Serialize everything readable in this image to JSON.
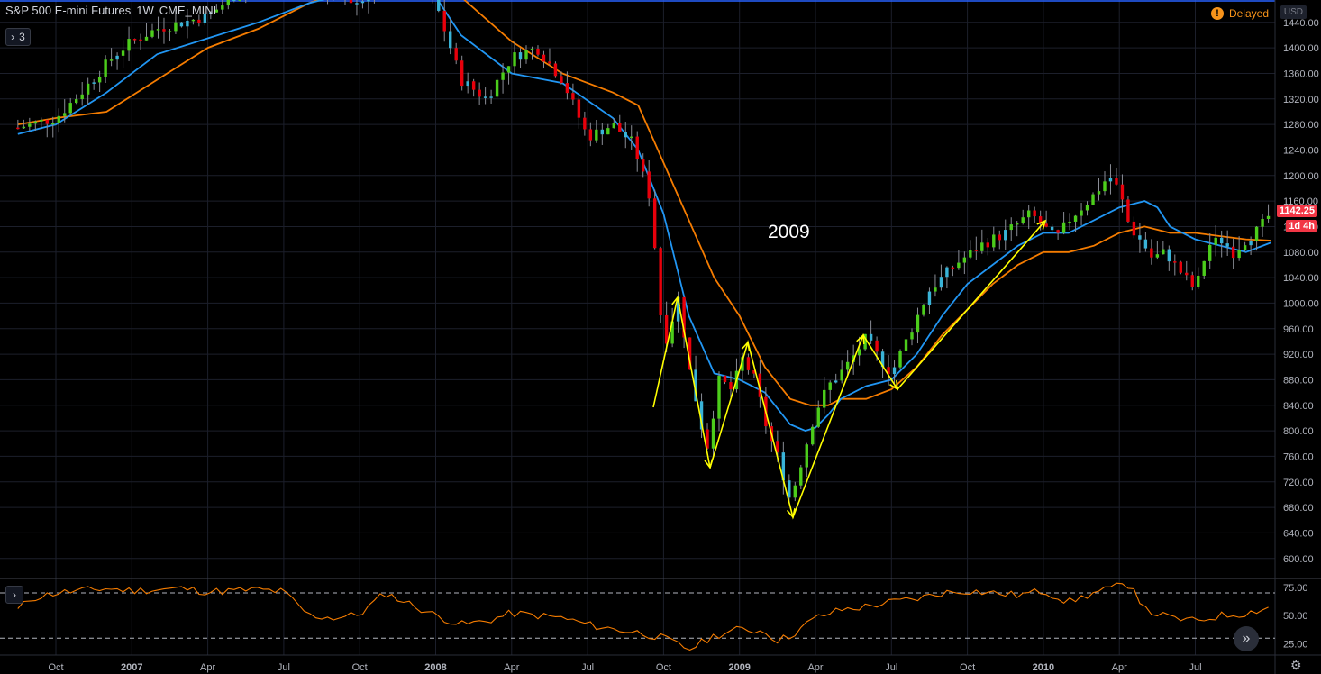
{
  "header": {
    "symbol": "S&P 500 E-mini Futures",
    "interval": "1W",
    "exchange": "CME_MINI",
    "indicator_count": "3",
    "delayed_label": "Delayed",
    "currency": "USD",
    "last_price": "1142.25",
    "countdown": "1d 4h"
  },
  "annotation": "2009",
  "colors": {
    "up": "#4ccd1b",
    "down": "#e8000b",
    "neutral": "#39b3d7",
    "ema_fast": "#2196f3",
    "ema_slow": "#f57c00",
    "rsi": "#f57c00",
    "arrows": "#ffff00",
    "grid": "#1c1f2b"
  },
  "chart_data": {
    "type": "line",
    "title": "S&P 500 E-mini Futures",
    "interval": "1W",
    "price_axis": {
      "range": [
        570,
        1475
      ],
      "ticks": [
        1440,
        1400,
        1360,
        1320,
        1280,
        1240,
        1200,
        1160,
        1120,
        1080,
        1040,
        1000,
        960,
        920,
        880,
        840,
        800,
        760,
        720,
        680,
        640,
        600
      ],
      "tick_labels": [
        "1440.00",
        "1400.00",
        "1360.00",
        "1320.00",
        "1280.00",
        "1240.00",
        "1200.00",
        "1160.00",
        "1120.00",
        "1080.00",
        "1040.00",
        "1000.00",
        "960.00",
        "920.00",
        "880.00",
        "840.00",
        "800.00",
        "760.00",
        "720.00",
        "680.00",
        "640.00",
        "600.00"
      ]
    },
    "time_axis": {
      "labels": [
        "Oct",
        "2007",
        "Apr",
        "Jul",
        "Oct",
        "2008",
        "Apr",
        "Jul",
        "Oct",
        "2009",
        "Apr",
        "Jul",
        "Oct",
        "2010",
        "Apr",
        "Jul"
      ],
      "month_index": [
        0,
        3,
        6,
        9,
        12,
        15,
        18,
        21,
        24,
        27,
        30,
        33,
        36,
        39,
        42,
        45
      ]
    },
    "price_path": {
      "month_index": [
        -1.5,
        0,
        1,
        2,
        2.5,
        3,
        4,
        5,
        6,
        7,
        8,
        9,
        10,
        11,
        12,
        13,
        14,
        15,
        16,
        17,
        18,
        19,
        20,
        21,
        22,
        22.8,
        23.5,
        24,
        24.6,
        25,
        25.7,
        26.2,
        26.8,
        27,
        27.6,
        28.1,
        28.6,
        29,
        29.5,
        30,
        30.5,
        31.2,
        32,
        32.4,
        33,
        33.8,
        34.5,
        35.5,
        36.5,
        37.5,
        38.5,
        39,
        39.5,
        40,
        41,
        41.6,
        42,
        42.4,
        43,
        43.3,
        43.8,
        44.4,
        45,
        45.5,
        46,
        46.5,
        47,
        47.5,
        48
      ],
      "values": [
        1275,
        1290,
        1330,
        1375,
        1395,
        1410,
        1430,
        1440,
        1450,
        1480,
        1510,
        1540,
        1500,
        1480,
        1470,
        1510,
        1520,
        1470,
        1350,
        1320,
        1385,
        1400,
        1350,
        1260,
        1280,
        1250,
        1160,
        930,
        1010,
        900,
        770,
        880,
        860,
        920,
        880,
        800,
        750,
        690,
        760,
        830,
        870,
        900,
        945,
        920,
        890,
        960,
        1020,
        1060,
        1090,
        1110,
        1140,
        1120,
        1100,
        1130,
        1170,
        1200,
        1175,
        1120,
        1090,
        1070,
        1080,
        1050,
        1020,
        1090,
        1100,
        1080,
        1100,
        1115,
        1142
      ]
    },
    "ema_fast": {
      "month_index": [
        -1.5,
        0,
        2,
        4,
        6,
        8,
        10,
        12,
        14,
        15,
        16,
        18,
        20,
        22,
        23,
        24,
        25,
        26,
        27,
        28,
        29,
        29.6,
        30,
        30.5,
        31,
        32,
        33,
        34,
        35,
        36,
        37,
        38,
        39,
        40,
        41,
        42,
        43,
        43.5,
        44,
        45,
        46,
        47,
        48
      ],
      "values": [
        1265,
        1280,
        1330,
        1390,
        1415,
        1440,
        1470,
        1490,
        1500,
        1480,
        1420,
        1360,
        1345,
        1290,
        1240,
        1140,
        980,
        890,
        880,
        860,
        810,
        800,
        805,
        825,
        850,
        870,
        880,
        920,
        980,
        1030,
        1060,
        1090,
        1110,
        1110,
        1130,
        1150,
        1160,
        1150,
        1120,
        1100,
        1090,
        1080,
        1095
      ]
    },
    "ema_slow": {
      "month_index": [
        -1.5,
        0,
        2,
        4,
        6,
        8,
        10,
        12,
        14,
        16,
        18,
        20,
        22,
        23,
        24,
        25,
        26,
        27,
        28,
        29,
        29.8,
        30.5,
        31,
        32,
        33,
        34,
        35,
        36,
        37,
        38,
        39,
        40,
        41,
        42,
        43,
        44,
        45,
        46,
        47,
        48
      ],
      "values": [
        1280,
        1290,
        1300,
        1350,
        1400,
        1430,
        1470,
        1500,
        1510,
        1480,
        1410,
        1360,
        1330,
        1310,
        1220,
        1130,
        1040,
        980,
        900,
        850,
        840,
        840,
        850,
        850,
        865,
        900,
        950,
        990,
        1030,
        1060,
        1080,
        1080,
        1090,
        1110,
        1120,
        1110,
        1110,
        1105,
        1100,
        1098
      ]
    },
    "rsi": {
      "range": [
        15,
        82
      ],
      "ticks": [
        75,
        50,
        25
      ],
      "tick_labels": [
        "75.00",
        "50.00",
        "25.00"
      ],
      "levels": [
        70,
        30
      ],
      "month_index": [
        -1.5,
        -1,
        0,
        1,
        2,
        3,
        4,
        5,
        6,
        7,
        8,
        9,
        10,
        11,
        12,
        13,
        14,
        15,
        16,
        17,
        18,
        19,
        20,
        21,
        22,
        23,
        24,
        25,
        26,
        27,
        28,
        28.5,
        29,
        30,
        31,
        32,
        33,
        34,
        35,
        36,
        37,
        38,
        39,
        40,
        41,
        42,
        42.5,
        43,
        44,
        45,
        46,
        47,
        48
      ],
      "values": [
        55,
        65,
        70,
        72,
        74,
        72,
        73,
        74,
        71,
        72,
        73,
        71,
        50,
        48,
        51,
        70,
        60,
        50,
        42,
        45,
        52,
        50,
        48,
        42,
        38,
        35,
        30,
        20,
        32,
        38,
        36,
        28,
        32,
        48,
        55,
        58,
        62,
        65,
        70,
        72,
        70,
        68,
        72,
        62,
        70,
        76,
        78,
        55,
        48,
        45,
        50,
        52,
        58
      ]
    }
  }
}
